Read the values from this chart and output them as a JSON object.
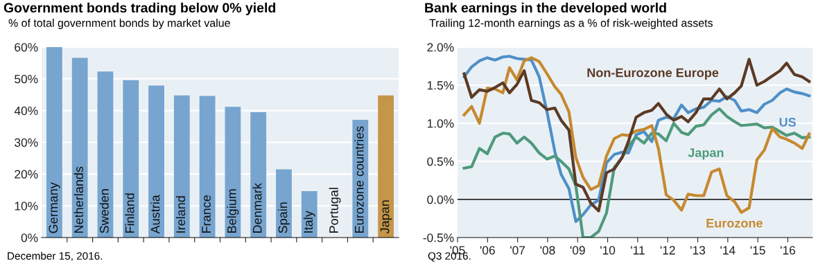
{
  "chart_data": [
    {
      "type": "bar",
      "title": "Government bonds trading below 0% yield",
      "subtitle": "% of total government bonds by market value",
      "categories": [
        "Germany",
        "Netherlands",
        "Sweden",
        "Finland",
        "Austria",
        "Ireland",
        "France",
        "Belgium",
        "Denmark",
        "Spain",
        "Italy",
        "Portugal",
        "Eurozone countries",
        "Japan"
      ],
      "values": [
        60,
        56.6,
        52.3,
        49.6,
        47.9,
        44.8,
        44.6,
        41.2,
        39.5,
        21.5,
        14.6,
        0,
        37.1,
        44.8
      ],
      "colors": [
        "#77a5cf",
        "#77a5cf",
        "#77a5cf",
        "#77a5cf",
        "#77a5cf",
        "#77a5cf",
        "#77a5cf",
        "#77a5cf",
        "#77a5cf",
        "#77a5cf",
        "#77a5cf",
        "#77a5cf",
        "#77a5cf",
        "#c4964a"
      ],
      "ylim": [
        0,
        60
      ],
      "yticks": [
        {
          "value": 0,
          "label": "0%"
        },
        {
          "value": 10,
          "label": "10%"
        },
        {
          "value": 20,
          "label": "20%"
        },
        {
          "value": 30,
          "label": "30%"
        },
        {
          "value": 40,
          "label": "40%"
        },
        {
          "value": 50,
          "label": "50%"
        },
        {
          "value": 60,
          "label": "60%"
        }
      ],
      "grid": "y",
      "legend": false,
      "annotations": [
        "December 15, 2016."
      ]
    },
    {
      "type": "line",
      "title": "Bank earnings in the developed world",
      "subtitle": "Trailing 12-month earnings as a % of risk-weighted assets",
      "x": [
        2005.22,
        2005.47,
        2005.73,
        2005.99,
        2006.25,
        2006.51,
        2006.73,
        2006.98,
        2007.22,
        2007.46,
        2007.72,
        2007.98,
        2008.24,
        2008.45,
        2008.71,
        2008.94,
        2009.18,
        2009.44,
        2009.7,
        2009.96,
        2010.22,
        2010.48,
        2010.69,
        2010.95,
        2011.21,
        2011.47,
        2011.69,
        2011.95,
        2012.2,
        2012.46,
        2012.68,
        2012.94,
        2013.2,
        2013.46,
        2013.72,
        2013.97,
        2014.23,
        2014.45,
        2014.71,
        2014.97,
        2015.22,
        2015.48,
        2015.74,
        2015.96,
        2016.22,
        2016.48,
        2016.71
      ],
      "series": [
        {
          "name": "US",
          "color": "#4f8fc8",
          "values": [
            1.61,
            1.74,
            1.82,
            1.86,
            1.83,
            1.87,
            1.88,
            1.85,
            1.84,
            1.83,
            1.61,
            1.15,
            0.63,
            0.33,
            0.14,
            -0.29,
            -0.2,
            -0.07,
            -0.01,
            0.48,
            0.59,
            0.62,
            0.61,
            0.85,
            0.89,
            0.76,
            1.04,
            1.08,
            1.06,
            1.24,
            1.14,
            1.19,
            1.21,
            1.3,
            1.29,
            1.35,
            1.3,
            1.16,
            1.18,
            1.14,
            1.25,
            1.3,
            1.4,
            1.45,
            1.41,
            1.39,
            1.36
          ]
        },
        {
          "name": "Japan",
          "color": "#4e9a7c",
          "values": [
            0.41,
            0.43,
            0.67,
            0.6,
            0.82,
            0.87,
            0.86,
            0.74,
            0.82,
            0.74,
            0.61,
            0.53,
            0.57,
            0.5,
            0.4,
            0.18,
            -0.5,
            -0.5,
            -0.42,
            -0.18,
            0.42,
            0.55,
            0.7,
            0.82,
            0.74,
            0.87,
            0.86,
            0.77,
            1.0,
            0.88,
            0.85,
            0.96,
            0.98,
            1.11,
            1.19,
            1.09,
            1.02,
            0.97,
            0.98,
            0.99,
            0.94,
            0.95,
            0.89,
            0.84,
            0.87,
            0.81,
            0.82
          ]
        },
        {
          "name": "Eurozone",
          "color": "#c6892f",
          "values": [
            1.11,
            1.22,
            1.0,
            1.46,
            1.45,
            1.4,
            1.73,
            1.57,
            1.82,
            1.86,
            1.81,
            1.65,
            1.48,
            1.38,
            1.15,
            0.55,
            0.29,
            0.13,
            0.18,
            0.57,
            0.8,
            0.85,
            0.84,
            0.9,
            0.92,
            0.97,
            0.67,
            0.06,
            -0.01,
            -0.14,
            0.07,
            0.05,
            0.05,
            0.36,
            0.4,
            0.05,
            -0.03,
            -0.17,
            -0.11,
            0.52,
            0.65,
            0.93,
            0.82,
            0.79,
            0.74,
            0.67,
            0.86
          ]
        },
        {
          "name": "Non-Eurozone Europe",
          "color": "#5c3a25",
          "values": [
            1.65,
            1.34,
            1.44,
            1.42,
            1.47,
            1.53,
            1.4,
            1.51,
            1.69,
            1.3,
            1.27,
            1.18,
            1.2,
            1.04,
            0.91,
            0.2,
            0.16,
            -0.05,
            -0.15,
            0.35,
            0.4,
            0.55,
            0.76,
            1.08,
            1.14,
            1.17,
            1.26,
            1.12,
            1.04,
            1.09,
            1.02,
            1.14,
            1.32,
            1.32,
            1.45,
            1.32,
            1.4,
            1.49,
            1.84,
            1.5,
            1.55,
            1.62,
            1.69,
            1.79,
            1.64,
            1.61,
            1.55
          ]
        }
      ],
      "xlim": [
        2005,
        2016.82
      ],
      "xticks": [
        {
          "value": 2005,
          "label": "'05"
        },
        {
          "value": 2006,
          "label": "'06"
        },
        {
          "value": 2007,
          "label": "'07"
        },
        {
          "value": 2008,
          "label": "'08"
        },
        {
          "value": 2009,
          "label": "'09"
        },
        {
          "value": 2010,
          "label": "'10"
        },
        {
          "value": 2011,
          "label": "'11"
        },
        {
          "value": 2012,
          "label": "'12"
        },
        {
          "value": 2013,
          "label": "'13"
        },
        {
          "value": 2014,
          "label": "'14"
        },
        {
          "value": 2015,
          "label": "'15"
        },
        {
          "value": 2016,
          "label": "'16"
        }
      ],
      "ylim": [
        -0.5,
        2.0
      ],
      "yticks": [
        {
          "value": -0.5,
          "label": "-0.5%"
        },
        {
          "value": 0,
          "label": "0.0%"
        },
        {
          "value": 0.5,
          "label": "0.5%"
        },
        {
          "value": 1.0,
          "label": "1.0%"
        },
        {
          "value": 1.5,
          "label": "1.5%"
        },
        {
          "value": 2.0,
          "label": "2.0%"
        }
      ],
      "ref_lines": [
        {
          "axis": "y",
          "value": 0,
          "color": "#000000"
        }
      ],
      "grid": "y",
      "legend": false,
      "marker": "none",
      "line_style": "solid",
      "annotations": [
        "Q3 2016."
      ]
    }
  ]
}
